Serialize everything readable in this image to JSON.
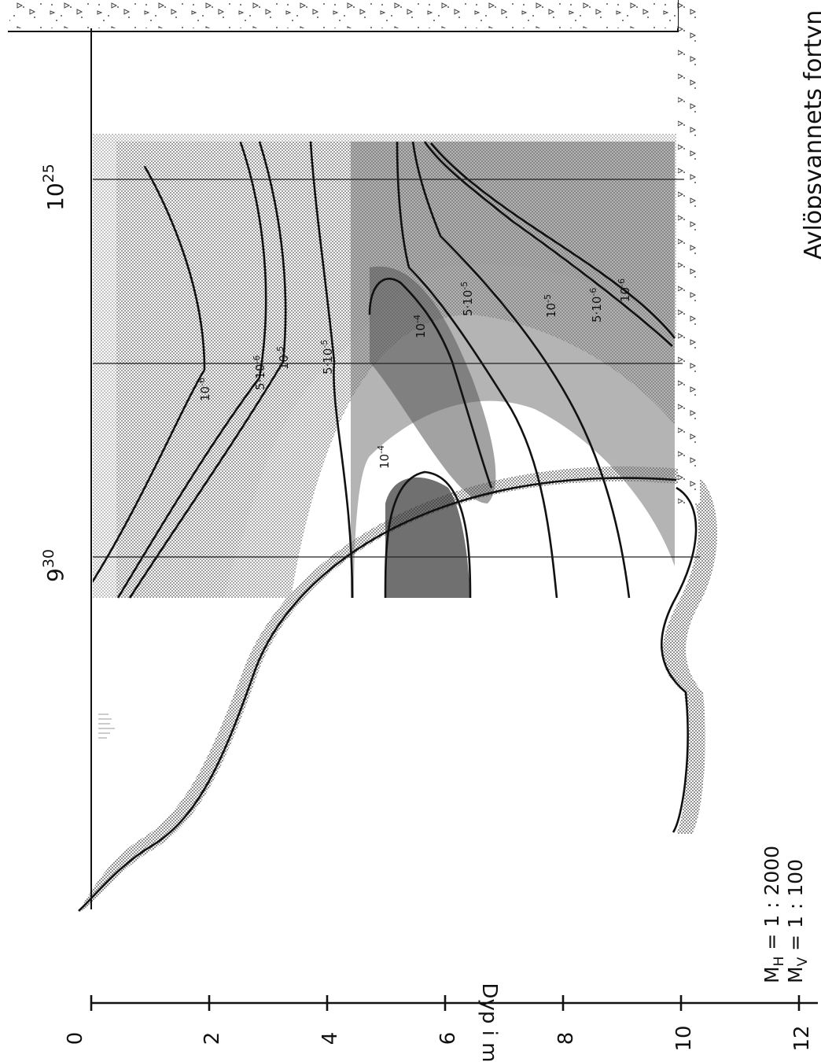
{
  "figure": {
    "caption_partial": "Avlöpsvannets fortyn",
    "depth_axis": {
      "label": "Dyp i m",
      "ticks": [
        "0",
        "2",
        "4",
        "6",
        "8",
        "10",
        "12"
      ]
    },
    "scale": {
      "horizontal": {
        "base": "M",
        "sub": "H",
        "rest": " = 1 : 2000"
      },
      "vertical": {
        "base": "M",
        "sub": "V",
        "rest": " = 1 : 100"
      }
    },
    "times": [
      {
        "base": "9",
        "sup": "30"
      },
      {
        "base": "10",
        "sup": "25"
      }
    ],
    "contours": {
      "top": [
        "10",
        "-6",
        "5·10",
        "-6",
        "10",
        "-5",
        "5·10",
        "-5"
      ],
      "core": [
        "10",
        "-4",
        "10",
        "-4"
      ],
      "bottom": [
        "5·10",
        "-5",
        "10",
        "-5",
        "5·10",
        "-6",
        "10",
        "-6"
      ]
    }
  }
}
